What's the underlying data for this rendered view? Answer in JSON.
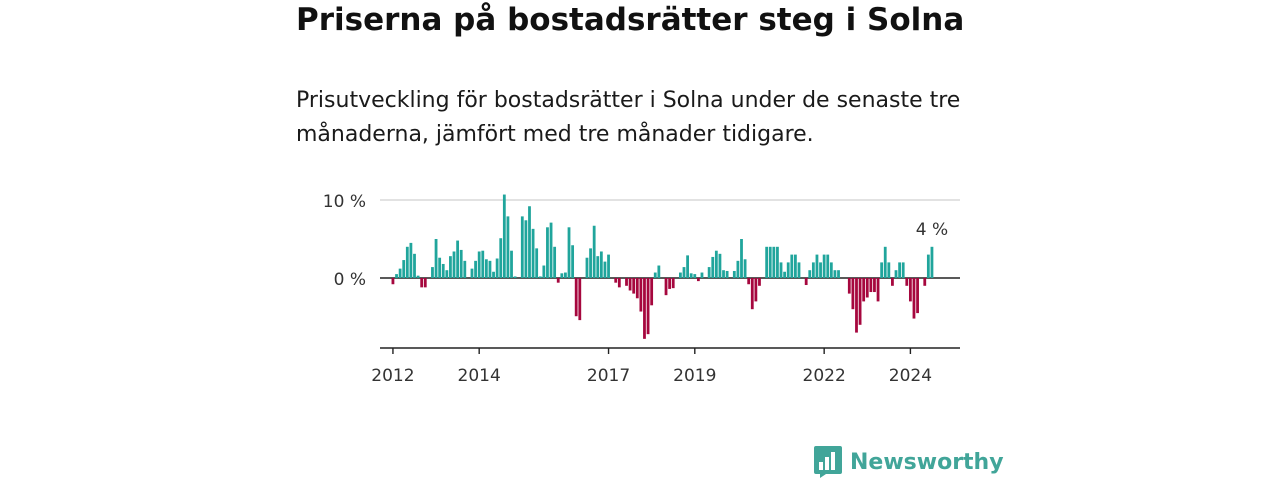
{
  "title": "Priserna på bostadsrätter steg i Solna",
  "subtitle": "Prisutveckling för bostadsrätter i Solna under de senaste tre månaderna, jämfört med tre månader tidigare.",
  "brand": {
    "name": "Newsworthy",
    "icon": "newsworthy-bar-chart-icon"
  },
  "colors": {
    "positive": "#20a59c",
    "negative": "#a6073e",
    "brand": "#41a599"
  },
  "chart_data": {
    "type": "bar",
    "ylabel_ticks": [
      "10 %",
      "0 %"
    ],
    "y_ticks": [
      10,
      0
    ],
    "ylim": [
      -9,
      10
    ],
    "xlim": [
      2011.7,
      2025.15
    ],
    "x_ticks": [
      2012,
      2014,
      2017,
      2019,
      2022,
      2024
    ],
    "x_tick_labels": [
      "2012",
      "2014",
      "2017",
      "2019",
      "2022",
      "2024"
    ],
    "grid": true,
    "annotation": {
      "label": "4 %",
      "value": 4
    },
    "start": 2012.0,
    "step": 0.08333,
    "values": [
      -0.8,
      0.5,
      1.2,
      2.3,
      4.0,
      4.5,
      3.1,
      0.3,
      -1.2,
      -1.2,
      0.0,
      1.4,
      5.0,
      2.6,
      1.8,
      1.0,
      2.8,
      3.4,
      4.8,
      3.6,
      2.2,
      0.0,
      1.2,
      2.2,
      3.4,
      3.5,
      2.4,
      2.2,
      0.8,
      2.5,
      5.1,
      10.7,
      7.9,
      3.5,
      0.2,
      0.0,
      7.9,
      7.4,
      9.2,
      6.3,
      3.8,
      0.2,
      1.6,
      6.5,
      7.1,
      4.0,
      -0.6,
      0.6,
      0.7,
      6.5,
      4.2,
      -4.9,
      -5.4,
      0.0,
      2.6,
      3.8,
      6.7,
      2.8,
      3.4,
      2.1,
      3.0,
      0.0,
      -0.6,
      -1.2,
      0.0,
      -1.0,
      -1.6,
      -2.0,
      -2.6,
      -4.3,
      -7.8,
      -7.2,
      -3.5,
      0.7,
      1.6,
      0.0,
      -2.2,
      -1.4,
      -1.3,
      0.0,
      0.7,
      1.4,
      2.9,
      0.6,
      0.5,
      -0.4,
      0.7,
      0.0,
      1.4,
      2.7,
      3.5,
      3.1,
      1.0,
      0.9,
      0.0,
      0.9,
      2.2,
      5.0,
      2.4,
      -0.8,
      -4.0,
      -3.0,
      -1.0,
      0.0,
      4.0,
      4.0,
      4.0,
      4.0,
      2.0,
      0.8,
      2.0,
      3.0,
      3.0,
      2.0,
      0.0,
      -0.9,
      1.0,
      2.0,
      3.0,
      2.0,
      3.0,
      3.0,
      2.0,
      1.0,
      1.0,
      0.0,
      0.0,
      -2.0,
      -4.0,
      -7.0,
      -6.0,
      -3.0,
      -2.5,
      -1.8,
      -1.8,
      -3.0,
      2.0,
      4.0,
      2.0,
      -1.0,
      1.0,
      2.0,
      2.0,
      -1.0,
      -3.0,
      -5.2,
      -4.5,
      0.0,
      -1.0,
      3.0,
      4.0
    ]
  }
}
